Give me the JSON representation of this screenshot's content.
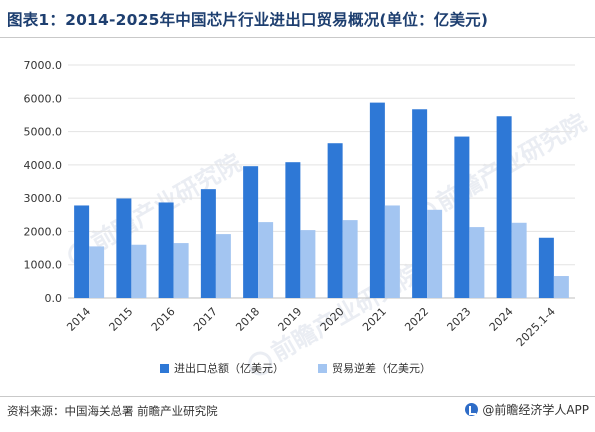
{
  "header": {
    "title": "图表1：2014-2025年中国芯片行业进出口贸易概况(单位：亿美元)"
  },
  "chart_data": {
    "type": "bar",
    "categories": [
      "2014",
      "2015",
      "2016",
      "2017",
      "2018",
      "2019",
      "2020",
      "2021",
      "2022",
      "2023",
      "2024",
      "2025.1-4"
    ],
    "series": [
      {
        "name": "进出口总额（亿美元）",
        "color": "#2e78d6",
        "values": [
          2780,
          2990,
          2870,
          3270,
          3960,
          4080,
          4650,
          5870,
          5670,
          4850,
          5460,
          1810
        ]
      },
      {
        "name": "贸易逆差（亿美元）",
        "color": "#a3c5f1",
        "values": [
          1550,
          1600,
          1650,
          1920,
          2280,
          2040,
          2340,
          2780,
          2650,
          2130,
          2260,
          660
        ]
      }
    ],
    "yticks": [
      "0.0",
      "1000.0",
      "2000.0",
      "3000.0",
      "4000.0",
      "5000.0",
      "6000.0",
      "7000.0"
    ],
    "ylim": [
      0,
      7000
    ],
    "xlabel": "",
    "ylabel": "",
    "legend_position": "bottom",
    "grid": true
  },
  "footer": {
    "source": "资料来源：中国海关总署 前瞻产业研究院",
    "brand": "@前瞻经济学人APP"
  },
  "watermark": {
    "text": "前瞻产业研究院"
  }
}
